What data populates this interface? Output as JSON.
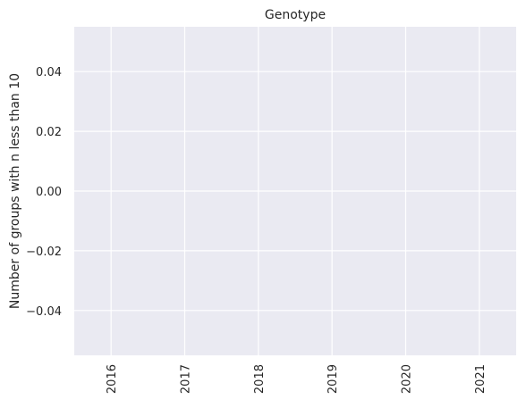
{
  "chart_data": {
    "type": "bar",
    "title": "Genotype",
    "xlabel": "",
    "ylabel": "Number of groups with n less than 10",
    "categories": [
      "2016",
      "2017",
      "2018",
      "2019",
      "2020",
      "2021"
    ],
    "values": [
      0,
      0,
      0,
      0,
      0,
      0
    ],
    "ylim": [
      -0.055,
      0.055
    ],
    "yticks": [
      0.04,
      0.02,
      0.0,
      -0.02,
      -0.04
    ],
    "ytick_labels": [
      "0.04",
      "0.02",
      "0.00",
      "−0.02",
      "−0.04"
    ],
    "grid": true,
    "xtick_rotation": "vertical",
    "colors": {
      "plot_background": "#eaeaf2",
      "grid": "#ffffff",
      "text": "#262626"
    }
  }
}
